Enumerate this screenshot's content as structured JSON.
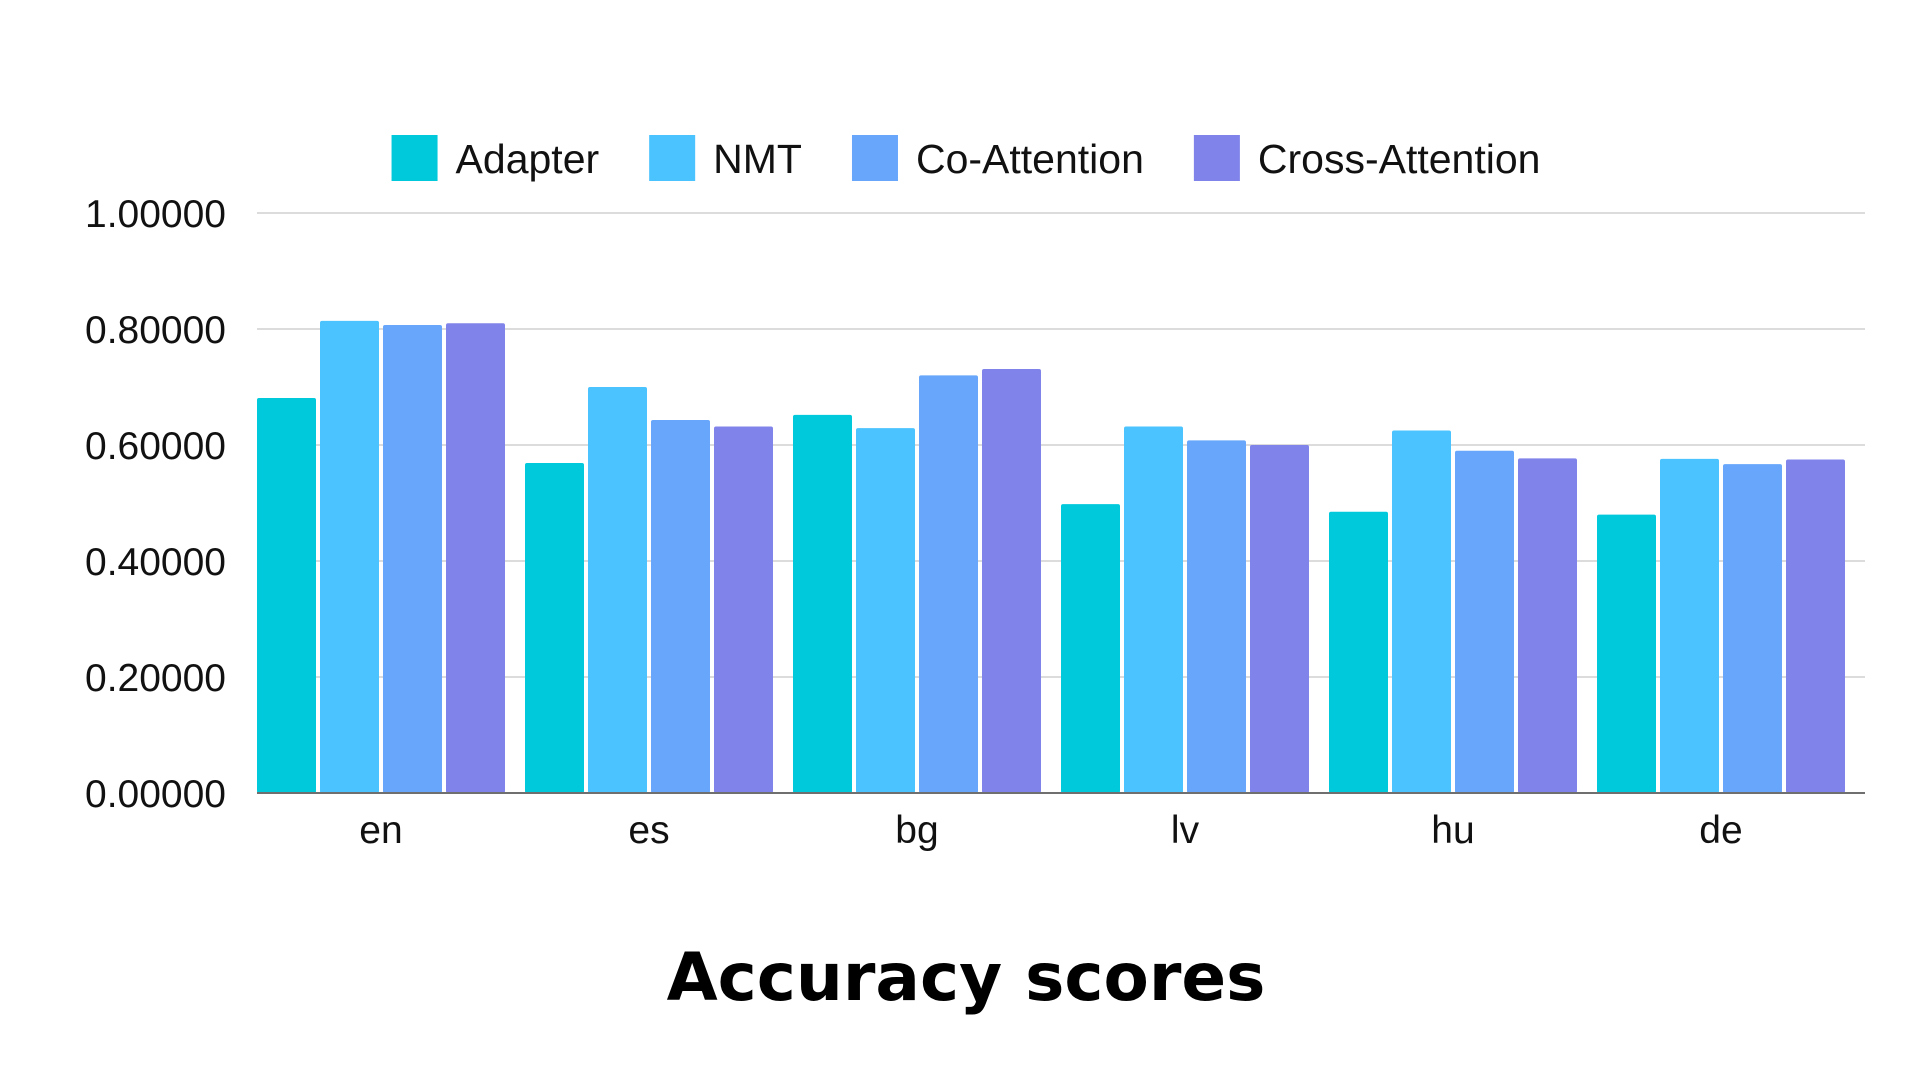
{
  "chart_data": {
    "type": "bar",
    "title": "Accuracy scores",
    "xlabel": "",
    "ylabel": "",
    "ylim": [
      0,
      1
    ],
    "yticks": [
      "0.00000",
      "0.20000",
      "0.40000",
      "0.60000",
      "0.80000",
      "1.00000"
    ],
    "ytick_values": [
      0,
      0.2,
      0.4,
      0.6,
      0.8,
      1.0
    ],
    "grid": true,
    "legend_position": "top",
    "categories": [
      "en",
      "es",
      "bg",
      "lv",
      "hu",
      "de"
    ],
    "series": [
      {
        "name": "Adapter",
        "color": "#00C9DB",
        "values": [
          0.681,
          0.569,
          0.652,
          0.498,
          0.485,
          0.48
        ]
      },
      {
        "name": "NMT",
        "color": "#4AC3FF",
        "values": [
          0.814,
          0.7,
          0.629,
          0.632,
          0.625,
          0.576
        ]
      },
      {
        "name": "Co-Attention",
        "color": "#67A6FB",
        "values": [
          0.807,
          0.643,
          0.72,
          0.608,
          0.59,
          0.567
        ]
      },
      {
        "name": "Cross-Attention",
        "color": "#8083E9",
        "values": [
          0.81,
          0.632,
          0.731,
          0.6,
          0.577,
          0.575
        ]
      }
    ]
  }
}
